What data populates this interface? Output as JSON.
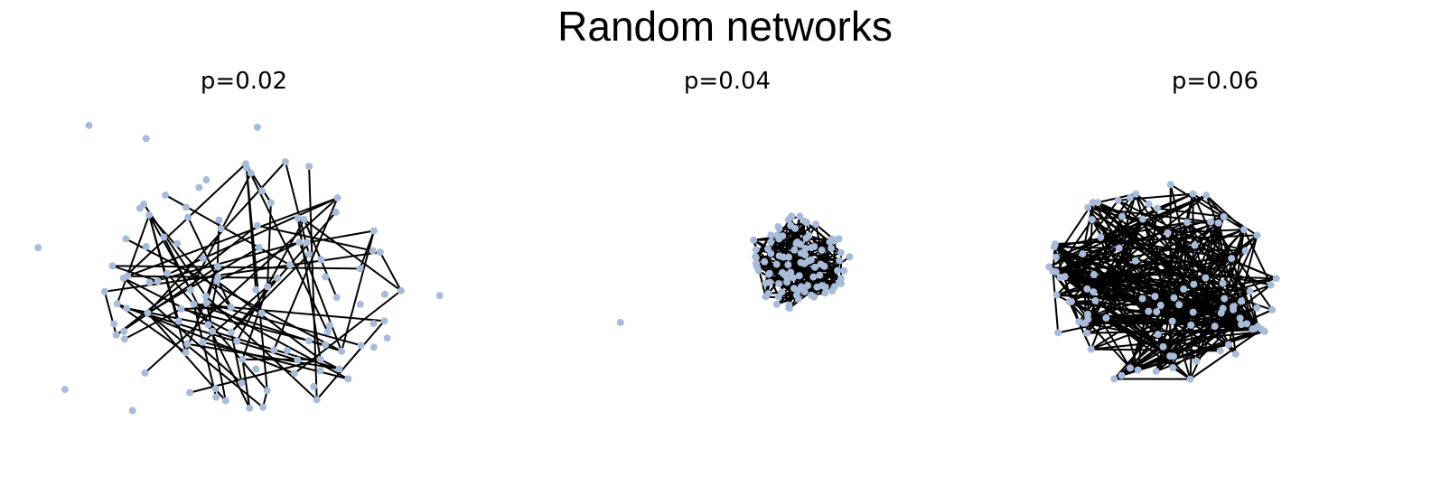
{
  "title": "Random networks",
  "node_color": "#a8bbd8",
  "edge_color": "#000000",
  "panels": [
    {
      "label": "p=0.02",
      "p": 0.02
    },
    {
      "label": "p=0.04",
      "p": 0.04
    },
    {
      "label": "p=0.06",
      "p": 0.06
    }
  ]
}
